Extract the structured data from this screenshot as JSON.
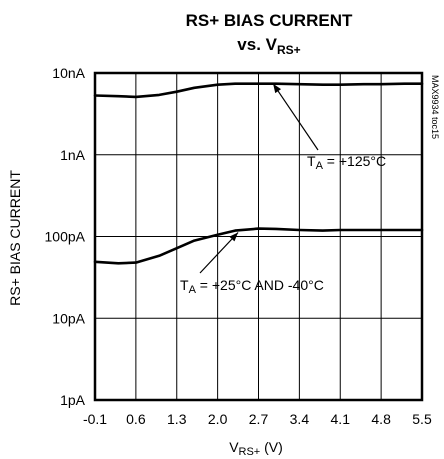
{
  "chart_data": {
    "type": "line",
    "title": {
      "line1": "RS+ BIAS CURRENT",
      "line2_prefix": "vs. V",
      "line2_sub": "RS+"
    },
    "xlabel": {
      "main": "V",
      "sub": "RS+",
      "suffix": " (V)"
    },
    "ylabel": "RS+ BIAS CURRENT",
    "x_ticks": [
      "-0.1",
      "0.6",
      "1.3",
      "2.0",
      "2.7",
      "3.4",
      "4.1",
      "4.8",
      "5.5"
    ],
    "y_ticks": [
      "1pA",
      "10pA",
      "100pA",
      "1nA",
      "10nA"
    ],
    "xlim": [
      -0.1,
      5.5
    ],
    "ylim_amperes": [
      1e-12,
      1e-08
    ],
    "y_scale": "log",
    "grid": true,
    "series": [
      {
        "x": [
          -0.1,
          0.3,
          0.6,
          1.0,
          1.3,
          1.6,
          2.0,
          2.3,
          2.7,
          3.0,
          3.4,
          3.8,
          4.1,
          4.5,
          4.8,
          5.2,
          5.5
        ],
        "y_amperes": [
          5.3e-09,
          5.2e-09,
          5.1e-09,
          5.4e-09,
          5.9e-09,
          6.6e-09,
          7.2e-09,
          7.4e-09,
          7.4e-09,
          7.4e-09,
          7.3e-09,
          7.2e-09,
          7.2e-09,
          7.3e-09,
          7.3e-09,
          7.4e-09,
          7.4e-09
        ]
      },
      {
        "x": [
          -0.1,
          0.3,
          0.6,
          1.0,
          1.3,
          1.6,
          2.0,
          2.3,
          2.7,
          3.0,
          3.4,
          3.8,
          4.1,
          4.5,
          4.8,
          5.2,
          5.5
        ],
        "y_amperes": [
          4.9e-11,
          4.7e-11,
          4.8e-11,
          5.8e-11,
          7.2e-11,
          8.9e-11,
          1.05e-10,
          1.18e-10,
          1.25e-10,
          1.24e-10,
          1.2e-10,
          1.18e-10,
          1.2e-10,
          1.2e-10,
          1.2e-10,
          1.2e-10,
          1.2e-10
        ]
      }
    ],
    "annotations": [
      {
        "prefix": "T",
        "sub": "A",
        "text": " = +125°C",
        "arrow_to": {
          "x": 2.95,
          "y_amperes": 7.4e-09
        }
      },
      {
        "prefix": "T",
        "sub": "A",
        "text": " = +25°C AND -40°C",
        "arrow_to": {
          "x": 2.35,
          "y_amperes": 1.12e-10
        }
      }
    ],
    "side_code": "MAX9934 toc15"
  }
}
